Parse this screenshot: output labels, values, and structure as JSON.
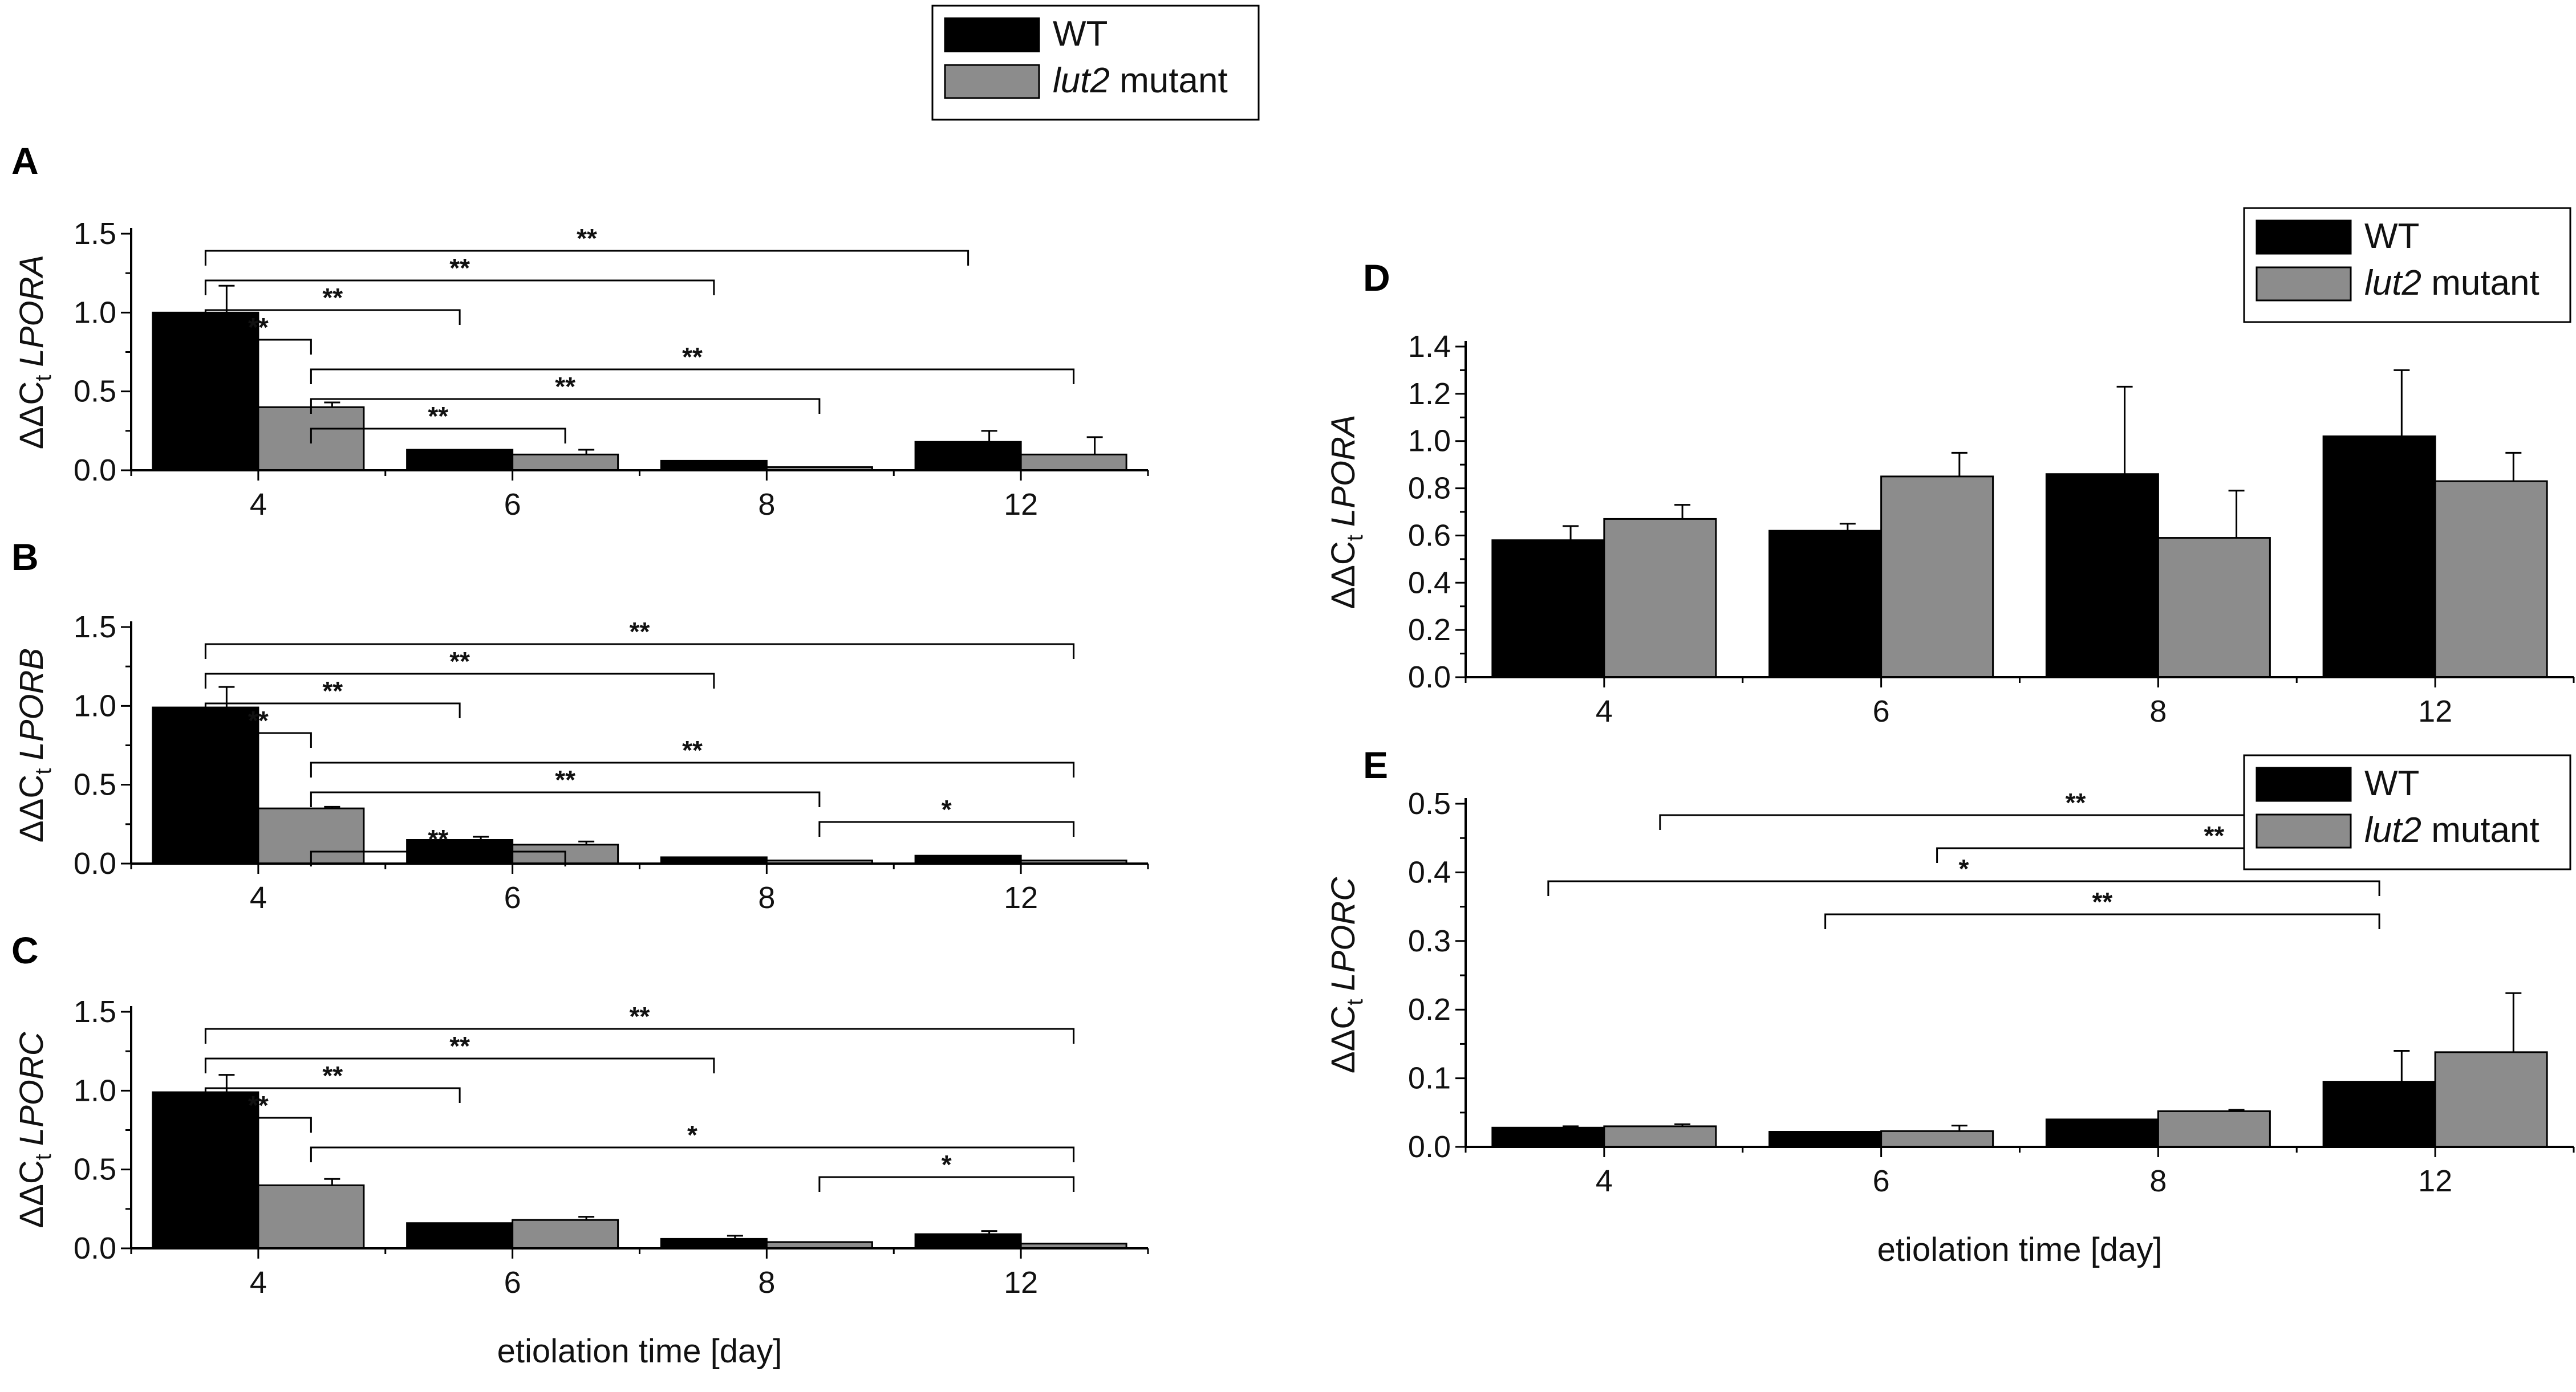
{
  "colors": {
    "wt": "#000000",
    "mutant": "#8c8c8c",
    "axis": "#000000"
  },
  "legend": {
    "wt_label": "WT",
    "mutant_gene": "lut2",
    "mutant_suffix": " mutant"
  },
  "xlabel_text": "etiolation time [day]",
  "chart_data": [
    {
      "panel": "A",
      "type": "bar",
      "title": "",
      "xlabel": "",
      "ylabel_prefix": "ΔΔC",
      "ylabel_sub": "t",
      "ylabel_gene": "LPORA",
      "categories": [
        "4",
        "6",
        "8",
        "12"
      ],
      "ylim": [
        0,
        1.5
      ],
      "yticks": [
        "0.0",
        "0.5",
        "1.0",
        "1.5"
      ],
      "ytick_values": [
        0,
        0.5,
        1.0,
        1.5
      ],
      "series": [
        {
          "name": "WT",
          "values": [
            1.0,
            0.13,
            0.06,
            0.18
          ],
          "errors": [
            0.17,
            0.0,
            0.0,
            0.07
          ]
        },
        {
          "name": "lut2 mutant",
          "values": [
            0.4,
            0.1,
            0.02,
            0.1
          ],
          "errors": [
            0.03,
            0.03,
            0.0,
            0.11
          ]
        }
      ],
      "annotations": [
        {
          "from": [
            "4",
            "WT"
          ],
          "to": [
            "12",
            "WT"
          ],
          "label": "**"
        },
        {
          "from": [
            "4",
            "WT"
          ],
          "to": [
            "8",
            "WT"
          ],
          "label": "**"
        },
        {
          "from": [
            "4",
            "WT"
          ],
          "to": [
            "6",
            "WT"
          ],
          "label": "**"
        },
        {
          "from": [
            "4",
            "WT"
          ],
          "to": [
            "4",
            "lut2 mutant"
          ],
          "label": "**"
        },
        {
          "from": [
            "4",
            "lut2 mutant"
          ],
          "to": [
            "12",
            "lut2 mutant"
          ],
          "label": "**"
        },
        {
          "from": [
            "4",
            "lut2 mutant"
          ],
          "to": [
            "8",
            "lut2 mutant"
          ],
          "label": "**"
        },
        {
          "from": [
            "4",
            "lut2 mutant"
          ],
          "to": [
            "6",
            "lut2 mutant"
          ],
          "label": "**"
        }
      ]
    },
    {
      "panel": "B",
      "type": "bar",
      "title": "",
      "xlabel": "",
      "ylabel_prefix": "ΔΔC",
      "ylabel_sub": "t",
      "ylabel_gene": "LPORB",
      "categories": [
        "4",
        "6",
        "8",
        "12"
      ],
      "ylim": [
        0,
        1.5
      ],
      "yticks": [
        "0.0",
        "0.5",
        "1.0",
        "1.5"
      ],
      "ytick_values": [
        0,
        0.5,
        1.0,
        1.5
      ],
      "series": [
        {
          "name": "WT",
          "values": [
            0.99,
            0.15,
            0.04,
            0.05
          ],
          "errors": [
            0.13,
            0.02,
            0.0,
            0.0
          ]
        },
        {
          "name": "lut2 mutant",
          "values": [
            0.35,
            0.12,
            0.02,
            0.02
          ],
          "errors": [
            0.01,
            0.02,
            0.0,
            0.0
          ]
        }
      ],
      "annotations": [
        {
          "from": [
            "4",
            "WT"
          ],
          "to": [
            "12",
            "lut2 mutant"
          ],
          "label": "**"
        },
        {
          "from": [
            "4",
            "WT"
          ],
          "to": [
            "8",
            "WT"
          ],
          "label": "**"
        },
        {
          "from": [
            "4",
            "WT"
          ],
          "to": [
            "6",
            "WT"
          ],
          "label": "**"
        },
        {
          "from": [
            "4",
            "WT"
          ],
          "to": [
            "4",
            "lut2 mutant"
          ],
          "label": "**"
        },
        {
          "from": [
            "4",
            "lut2 mutant"
          ],
          "to": [
            "12",
            "lut2 mutant"
          ],
          "label": "**"
        },
        {
          "from": [
            "4",
            "lut2 mutant"
          ],
          "to": [
            "8",
            "lut2 mutant"
          ],
          "label": "**"
        },
        {
          "from": [
            "8",
            "lut2 mutant"
          ],
          "to": [
            "12",
            "lut2 mutant"
          ],
          "label": "*"
        },
        {
          "from": [
            "4",
            "lut2 mutant"
          ],
          "to": [
            "6",
            "lut2 mutant"
          ],
          "label": "**"
        }
      ]
    },
    {
      "panel": "C",
      "type": "bar",
      "title": "",
      "xlabel": "etiolation time [day]",
      "ylabel_prefix": "ΔΔC",
      "ylabel_sub": "t",
      "ylabel_gene": "LPORC",
      "categories": [
        "4",
        "6",
        "8",
        "12"
      ],
      "ylim": [
        0,
        1.5
      ],
      "yticks": [
        "0.0",
        "0.5",
        "1.0",
        "1.5"
      ],
      "ytick_values": [
        0,
        0.5,
        1.0,
        1.5
      ],
      "series": [
        {
          "name": "WT",
          "values": [
            0.99,
            0.16,
            0.06,
            0.09
          ],
          "errors": [
            0.11,
            0.0,
            0.02,
            0.02
          ]
        },
        {
          "name": "lut2 mutant",
          "values": [
            0.4,
            0.18,
            0.04,
            0.03
          ],
          "errors": [
            0.04,
            0.02,
            0.0,
            0.0
          ]
        }
      ],
      "annotations": [
        {
          "from": [
            "4",
            "WT"
          ],
          "to": [
            "12",
            "lut2 mutant"
          ],
          "label": "**"
        },
        {
          "from": [
            "4",
            "WT"
          ],
          "to": [
            "8",
            "WT"
          ],
          "label": "**"
        },
        {
          "from": [
            "4",
            "WT"
          ],
          "to": [
            "6",
            "WT"
          ],
          "label": "**"
        },
        {
          "from": [
            "4",
            "WT"
          ],
          "to": [
            "4",
            "lut2 mutant"
          ],
          "label": "**"
        },
        {
          "from": [
            "4",
            "lut2 mutant"
          ],
          "to": [
            "12",
            "lut2 mutant"
          ],
          "label": "*"
        },
        {
          "from": [
            "8",
            "lut2 mutant"
          ],
          "to": [
            "12",
            "lut2 mutant"
          ],
          "label": "*"
        }
      ]
    },
    {
      "panel": "D",
      "type": "bar",
      "title": "",
      "xlabel": "",
      "ylabel_prefix": "ΔΔC",
      "ylabel_sub": "t",
      "ylabel_gene": "LPORA",
      "categories": [
        "4",
        "6",
        "8",
        "12"
      ],
      "ylim": [
        0,
        1.4
      ],
      "yticks": [
        "0.0",
        "0.2",
        "0.4",
        "0.6",
        "0.8",
        "1.0",
        "1.2",
        "1.4"
      ],
      "ytick_values": [
        0,
        0.2,
        0.4,
        0.6,
        0.8,
        1.0,
        1.2,
        1.4
      ],
      "series": [
        {
          "name": "WT",
          "values": [
            0.58,
            0.62,
            0.86,
            1.02
          ],
          "errors": [
            0.06,
            0.03,
            0.37,
            0.28
          ]
        },
        {
          "name": "lut2 mutant",
          "values": [
            0.67,
            0.85,
            0.59,
            0.83
          ],
          "errors": [
            0.06,
            0.1,
            0.2,
            0.12
          ]
        }
      ],
      "annotations": []
    },
    {
      "panel": "E",
      "type": "bar",
      "title": "",
      "xlabel": "etiolation time [day]",
      "ylabel_prefix": "ΔΔC",
      "ylabel_sub": "t",
      "ylabel_gene": "LPORC",
      "categories": [
        "4",
        "6",
        "8",
        "12"
      ],
      "ylim": [
        0,
        0.5
      ],
      "yticks": [
        "0.0",
        "0.1",
        "0.2",
        "0.3",
        "0.4",
        "0.5"
      ],
      "ytick_values": [
        0,
        0.1,
        0.2,
        0.3,
        0.4,
        0.5
      ],
      "series": [
        {
          "name": "WT",
          "values": [
            0.028,
            0.022,
            0.04,
            0.095
          ],
          "errors": [
            0.002,
            0.0,
            0.0,
            0.045
          ]
        },
        {
          "name": "lut2 mutant",
          "values": [
            0.03,
            0.023,
            0.052,
            0.138
          ],
          "errors": [
            0.003,
            0.008,
            0.002,
            0.086
          ]
        }
      ],
      "annotations": [
        {
          "from": [
            "4",
            "lut2 mutant"
          ],
          "to": [
            "12",
            "lut2 mutant"
          ],
          "label": "**"
        },
        {
          "from": [
            "6",
            "lut2 mutant"
          ],
          "to": [
            "12",
            "lut2 mutant"
          ],
          "label": "**"
        },
        {
          "from": [
            "4",
            "WT"
          ],
          "to": [
            "12",
            "WT"
          ],
          "label": "*"
        },
        {
          "from": [
            "6",
            "WT"
          ],
          "to": [
            "12",
            "WT"
          ],
          "label": "**"
        }
      ]
    }
  ]
}
